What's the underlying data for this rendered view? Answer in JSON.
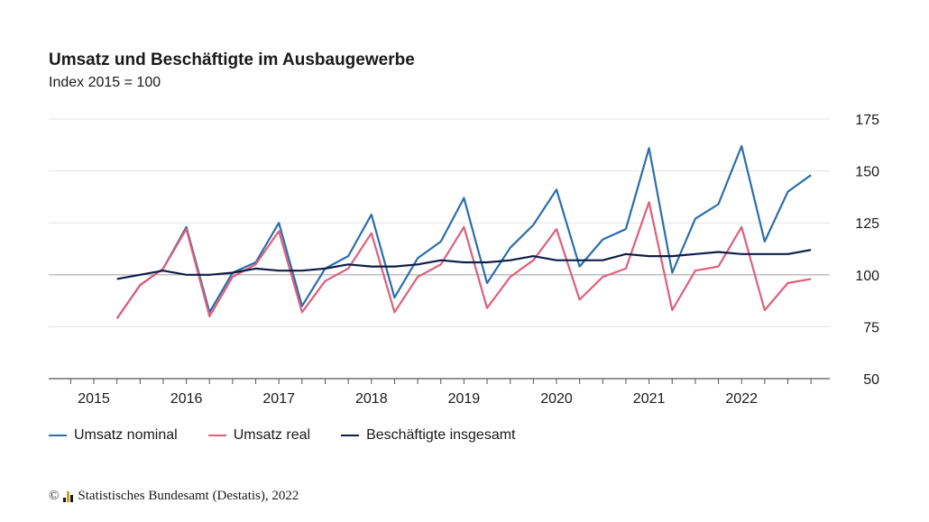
{
  "colors": {
    "nominal": "#2a6eab",
    "real": "#df5f7a",
    "employed": "#0d1e47",
    "grid": "#e3e3e3",
    "ref": "#a8a8a8",
    "axis": "#555555"
  },
  "footer": {
    "copyright_symbol": "©",
    "logo_icon": "destatis-logo-icon",
    "source": "Statistisches Bundesamt (Destatis), 2022"
  },
  "chart_data": {
    "type": "line",
    "title": "Umsatz und Beschäftigte im Ausbaugewerbe",
    "subtitle": "Index 2015 = 100",
    "xlabel": "",
    "ylabel": "",
    "x_ticks": [
      "2015",
      "2016",
      "2017",
      "2018",
      "2019",
      "2020",
      "2021",
      "2022"
    ],
    "y_ticks": [
      50,
      75,
      100,
      125,
      150,
      175
    ],
    "ylim": [
      50,
      175
    ],
    "reference_line": 100,
    "grid": true,
    "legend_position": "bottom",
    "x": [
      "2015 Q1",
      "2015 Q2",
      "2015 Q3",
      "2015 Q4",
      "2016 Q1",
      "2016 Q2",
      "2016 Q3",
      "2016 Q4",
      "2017 Q1",
      "2017 Q2",
      "2017 Q3",
      "2017 Q4",
      "2018 Q1",
      "2018 Q2",
      "2018 Q3",
      "2018 Q4",
      "2019 Q1",
      "2019 Q2",
      "2019 Q3",
      "2019 Q4",
      "2020 Q1",
      "2020 Q2",
      "2020 Q3",
      "2020 Q4",
      "2021 Q1",
      "2021 Q2",
      "2021 Q3",
      "2021 Q4",
      "2022 Q1",
      "2022 Q2",
      "2022 Q3"
    ],
    "series": [
      {
        "name": "Umsatz nominal",
        "values": [
          79,
          95,
          103,
          123,
          82,
          101,
          106,
          125,
          85,
          103,
          109,
          129,
          89,
          108,
          116,
          137,
          96,
          113,
          124,
          141,
          104,
          117,
          122,
          161,
          101,
          127,
          134,
          162,
          116,
          140,
          148
        ]
      },
      {
        "name": "Umsatz real",
        "values": [
          79,
          95,
          103,
          122,
          80,
          99,
          105,
          121,
          82,
          97,
          103,
          120,
          82,
          99,
          105,
          123,
          84,
          99,
          107,
          122,
          88,
          99,
          103,
          135,
          83,
          102,
          104,
          123,
          83,
          96,
          98
        ]
      },
      {
        "name": "Beschäftigte insgesamt",
        "values": [
          98,
          100,
          102,
          100,
          100,
          101,
          103,
          102,
          102,
          103,
          105,
          104,
          104,
          105,
          107,
          106,
          106,
          107,
          109,
          107,
          107,
          107,
          110,
          109,
          109,
          110,
          111,
          110,
          110,
          110,
          112
        ]
      }
    ]
  }
}
